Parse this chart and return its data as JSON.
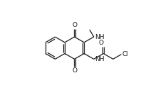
{
  "bg_color": "#ffffff",
  "line_color": "#1a1a1a",
  "line_width": 0.9,
  "font_size": 6.5,
  "figsize": [
    2.22,
    1.34
  ],
  "dpi": 100,
  "xlim": [
    0,
    9
  ],
  "ylim": [
    0,
    5.4
  ]
}
